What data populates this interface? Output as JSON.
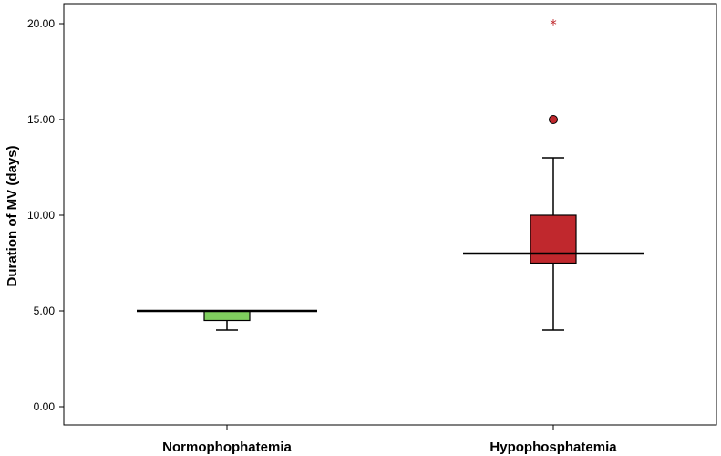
{
  "chart_data": {
    "type": "boxplot",
    "title": "",
    "xlabel": "",
    "ylabel": "Duration of MV (days)",
    "ylim": [
      0,
      21
    ],
    "yticks": [
      0,
      5,
      10,
      15,
      20
    ],
    "ytick_labels": [
      "0.00",
      "5.00",
      "10.00",
      "15.00",
      "20.00"
    ],
    "grid": false,
    "categories": [
      "Normophophatemia",
      "Hypophosphatemia"
    ],
    "boxes": [
      {
        "category": "Normophophatemia",
        "color": "#7fce5e",
        "whisker_low": 4,
        "q1": 4.5,
        "median": 5,
        "q3": 5,
        "whisker_high": 5,
        "outliers": [],
        "extremes": []
      },
      {
        "category": "Hypophosphatemia",
        "color": "#c0282d",
        "whisker_low": 4,
        "q1": 7.5,
        "median": 8,
        "q3": 10,
        "whisker_high": 13,
        "outliers": [
          15
        ],
        "extremes": [
          20
        ]
      }
    ]
  }
}
